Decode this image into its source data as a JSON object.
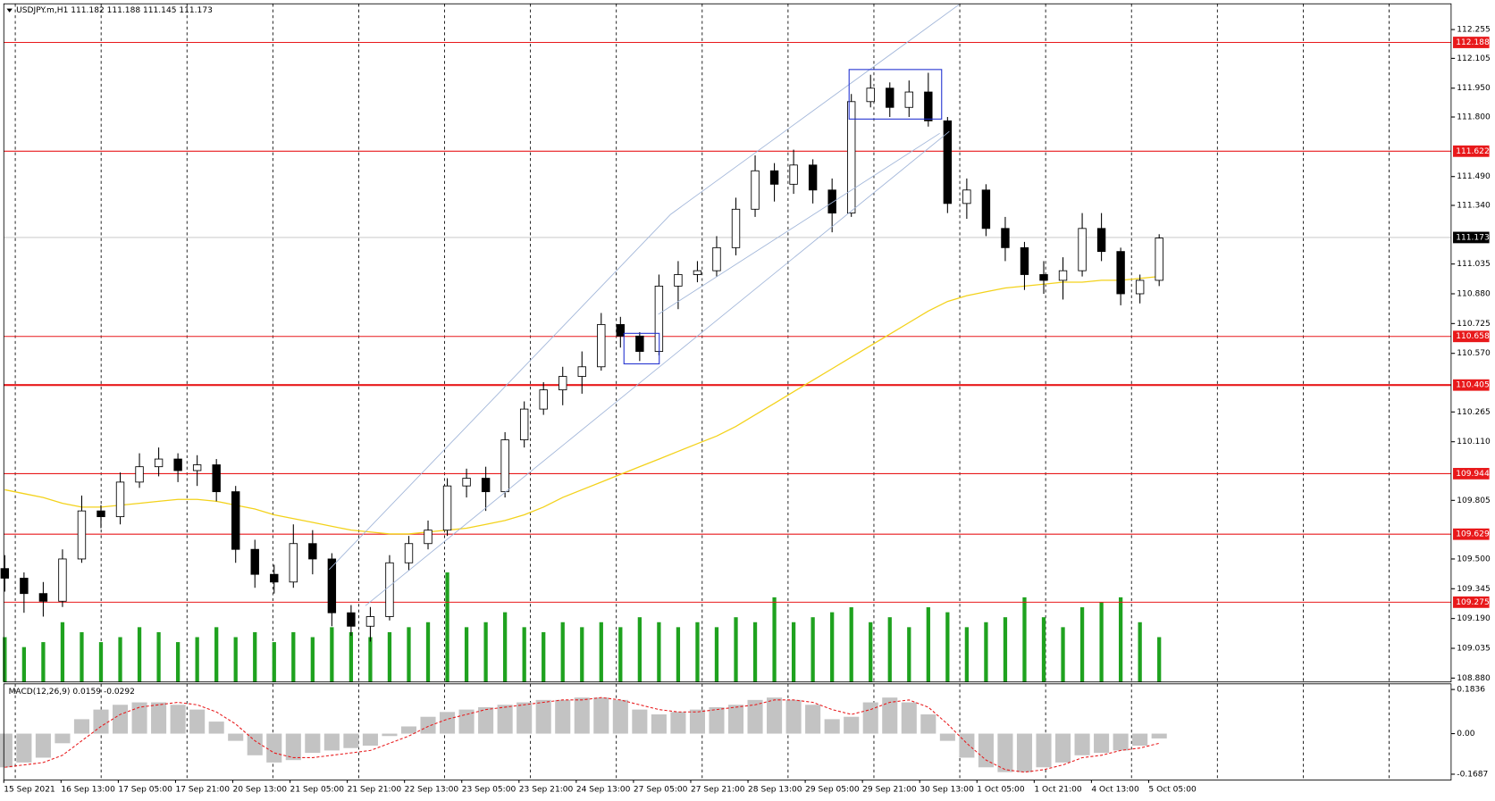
{
  "chart_data": [
    {
      "type": "candlestick",
      "title": "USDJPY.m,H1 111.182 111.188 111.145 111.173",
      "time_labels": [
        "15 Sep 2021",
        "16 Sep 13:00",
        "17 Sep 05:00",
        "17 Sep 21:00",
        "20 Sep 13:00",
        "21 Sep 05:00",
        "21 Sep 21:00",
        "22 Sep 13:00",
        "23 Sep 05:00",
        "23 Sep 21:00",
        "24 Sep 13:00",
        "27 Sep 05:00",
        "27 Sep 21:00",
        "28 Sep 13:00",
        "29 Sep 05:00",
        "29 Sep 21:00",
        "30 Sep 13:00",
        "1 Oct 05:00",
        "1 Oct 21:00",
        "4 Oct 13:00",
        "5 Oct 05:00"
      ],
      "open": [
        109.45,
        109.4,
        109.32,
        109.28,
        109.5,
        109.75,
        109.72,
        109.9,
        109.98,
        110.02,
        109.96,
        109.99,
        109.85,
        109.55,
        109.42,
        109.38,
        109.58,
        109.5,
        109.22,
        109.15,
        109.2,
        109.48,
        109.58,
        109.65,
        109.88,
        109.92,
        109.85,
        110.12,
        110.28,
        110.38,
        110.45,
        110.5,
        110.72,
        110.66,
        110.58,
        110.92,
        110.98,
        111.0,
        111.12,
        111.32,
        111.52,
        111.45,
        111.55,
        111.42,
        111.3,
        111.88,
        111.95,
        111.85,
        111.93,
        111.78,
        111.35,
        111.42,
        111.22,
        111.12,
        110.98,
        110.95,
        111.0,
        111.22,
        111.1,
        110.88,
        110.95
      ],
      "high": [
        109.52,
        109.43,
        109.38,
        109.55,
        109.83,
        109.78,
        109.95,
        110.05,
        110.08,
        110.05,
        110.04,
        110.02,
        109.88,
        109.6,
        109.47,
        109.68,
        109.65,
        109.53,
        109.26,
        109.25,
        109.52,
        109.62,
        109.7,
        109.92,
        109.97,
        109.98,
        110.16,
        110.32,
        110.42,
        110.5,
        110.58,
        110.78,
        110.76,
        110.68,
        110.98,
        111.05,
        111.05,
        111.18,
        111.38,
        111.6,
        111.56,
        111.63,
        111.58,
        111.48,
        111.92,
        112.02,
        111.98,
        111.99,
        112.03,
        111.8,
        111.48,
        111.45,
        111.28,
        111.15,
        111.05,
        111.07,
        111.3,
        111.3,
        111.12,
        110.98,
        111.19
      ],
      "low": [
        109.33,
        109.22,
        109.2,
        109.25,
        109.48,
        109.66,
        109.68,
        109.87,
        109.93,
        109.9,
        109.88,
        109.8,
        109.48,
        109.35,
        109.32,
        109.35,
        109.42,
        109.15,
        109.1,
        109.07,
        109.18,
        109.44,
        109.55,
        109.62,
        109.82,
        109.75,
        109.82,
        110.08,
        110.25,
        110.3,
        110.36,
        110.48,
        110.6,
        110.53,
        110.56,
        110.8,
        110.94,
        110.97,
        111.08,
        111.28,
        111.36,
        111.4,
        111.35,
        111.2,
        111.28,
        111.85,
        111.8,
        111.8,
        111.75,
        111.3,
        111.27,
        111.18,
        111.05,
        110.9,
        110.88,
        110.85,
        110.97,
        111.05,
        110.82,
        110.83,
        110.92
      ],
      "close": [
        109.4,
        109.32,
        109.28,
        109.5,
        109.75,
        109.72,
        109.9,
        109.98,
        110.02,
        109.96,
        109.99,
        109.85,
        109.55,
        109.42,
        109.38,
        109.58,
        109.5,
        109.22,
        109.15,
        109.2,
        109.48,
        109.58,
        109.65,
        109.88,
        109.92,
        109.85,
        110.12,
        110.28,
        110.38,
        110.45,
        110.5,
        110.72,
        110.66,
        110.58,
        110.92,
        110.98,
        111.0,
        111.12,
        111.32,
        111.52,
        111.45,
        111.55,
        111.42,
        111.3,
        111.88,
        111.95,
        111.85,
        111.93,
        111.78,
        111.35,
        111.42,
        111.22,
        111.12,
        110.98,
        110.95,
        111.0,
        111.22,
        111.1,
        110.88,
        110.95,
        111.17
      ],
      "volume": {
        "color": "#1fa21f",
        "values": [
          45,
          35,
          40,
          60,
          50,
          40,
          45,
          55,
          50,
          40,
          45,
          55,
          45,
          50,
          40,
          50,
          45,
          55,
          50,
          45,
          50,
          55,
          60,
          110,
          55,
          60,
          70,
          55,
          50,
          60,
          55,
          60,
          55,
          65,
          60,
          55,
          60,
          55,
          65,
          60,
          85,
          60,
          65,
          70,
          75,
          60,
          65,
          55,
          75,
          70,
          55,
          60,
          65,
          85,
          65,
          55,
          75,
          80,
          85,
          60,
          45
        ]
      },
      "ma": {
        "color": "#f3d21b",
        "values": [
          109.86,
          109.84,
          109.82,
          109.79,
          109.77,
          109.77,
          109.78,
          109.79,
          109.8,
          109.81,
          109.81,
          109.8,
          109.78,
          109.76,
          109.73,
          109.71,
          109.69,
          109.67,
          109.65,
          109.64,
          109.63,
          109.63,
          109.64,
          109.65,
          109.66,
          109.68,
          109.7,
          109.73,
          109.77,
          109.82,
          109.86,
          109.9,
          109.94,
          109.98,
          110.02,
          110.06,
          110.1,
          110.14,
          110.19,
          110.25,
          110.31,
          110.37,
          110.43,
          110.49,
          110.55,
          110.61,
          110.67,
          110.73,
          110.79,
          110.84,
          110.87,
          110.89,
          110.91,
          110.92,
          110.93,
          110.94,
          110.94,
          110.95,
          110.95,
          110.96,
          110.97
        ]
      },
      "levels": {
        "color": "#e8191b",
        "values": [
          112.188,
          111.622,
          110.658,
          110.405,
          109.944,
          109.629,
          109.275
        ]
      },
      "current_price": 111.173,
      "ylim": [
        108.86,
        112.389
      ],
      "yticks": [
        112.255,
        112.105,
        {
          "value": 111.95,
          "label": "111.950"
        },
        {
          "value": 111.8,
          "label": "111.800"
        },
        {
          "value": 111.49,
          "label": "111.490"
        },
        {
          "value": 111.34,
          "label": "111.340"
        },
        111.035,
        {
          "value": 110.88,
          "label": "110.880"
        },
        110.725,
        {
          "value": 110.57,
          "label": "110.570"
        },
        110.265,
        {
          "value": 110.11,
          "label": "110.110"
        },
        109.805,
        {
          "value": 109.5,
          "label": "109.500"
        },
        109.345,
        {
          "value": 109.19,
          "label": "109.190"
        },
        109.035,
        {
          "value": 108.88,
          "label": "108.880"
        }
      ]
    },
    {
      "type": "macd",
      "title": "MACD(12,26,9) 0.0159 -0.0292",
      "histogram": {
        "color": "#c3c3c3",
        "values": [
          -0.14,
          -0.12,
          -0.1,
          -0.04,
          0.06,
          0.1,
          0.12,
          0.13,
          0.13,
          0.12,
          0.1,
          0.05,
          -0.03,
          -0.09,
          -0.12,
          -0.11,
          -0.08,
          -0.07,
          -0.06,
          -0.05,
          -0.01,
          0.03,
          0.07,
          0.09,
          0.1,
          0.11,
          0.12,
          0.13,
          0.14,
          0.14,
          0.15,
          0.15,
          0.14,
          0.1,
          0.08,
          0.09,
          0.1,
          0.11,
          0.12,
          0.14,
          0.15,
          0.14,
          0.12,
          0.06,
          0.07,
          0.13,
          0.15,
          0.13,
          0.08,
          -0.03,
          -0.1,
          -0.14,
          -0.16,
          -0.16,
          -0.14,
          -0.12,
          -0.09,
          -0.08,
          -0.07,
          -0.05,
          -0.02
        ]
      },
      "signal": {
        "color": "#e8191b",
        "values": [
          -0.14,
          -0.13,
          -0.12,
          -0.09,
          -0.03,
          0.03,
          0.08,
          0.11,
          0.12,
          0.13,
          0.12,
          0.09,
          0.04,
          -0.03,
          -0.08,
          -0.1,
          -0.1,
          -0.09,
          -0.08,
          -0.07,
          -0.04,
          -0.01,
          0.03,
          0.06,
          0.08,
          0.1,
          0.11,
          0.12,
          0.13,
          0.14,
          0.14,
          0.15,
          0.14,
          0.12,
          0.1,
          0.09,
          0.09,
          0.1,
          0.11,
          0.12,
          0.14,
          0.14,
          0.13,
          0.1,
          0.08,
          0.1,
          0.13,
          0.14,
          0.11,
          0.04,
          -0.04,
          -0.11,
          -0.15,
          -0.16,
          -0.15,
          -0.13,
          -0.1,
          -0.09,
          -0.07,
          -0.06,
          -0.04
        ]
      },
      "ylim": [
        -0.193,
        0.207
      ],
      "yticks": [
        0.1836,
        {
          "value": 0,
          "label": "0.00"
        },
        -0.1687
      ]
    }
  ]
}
